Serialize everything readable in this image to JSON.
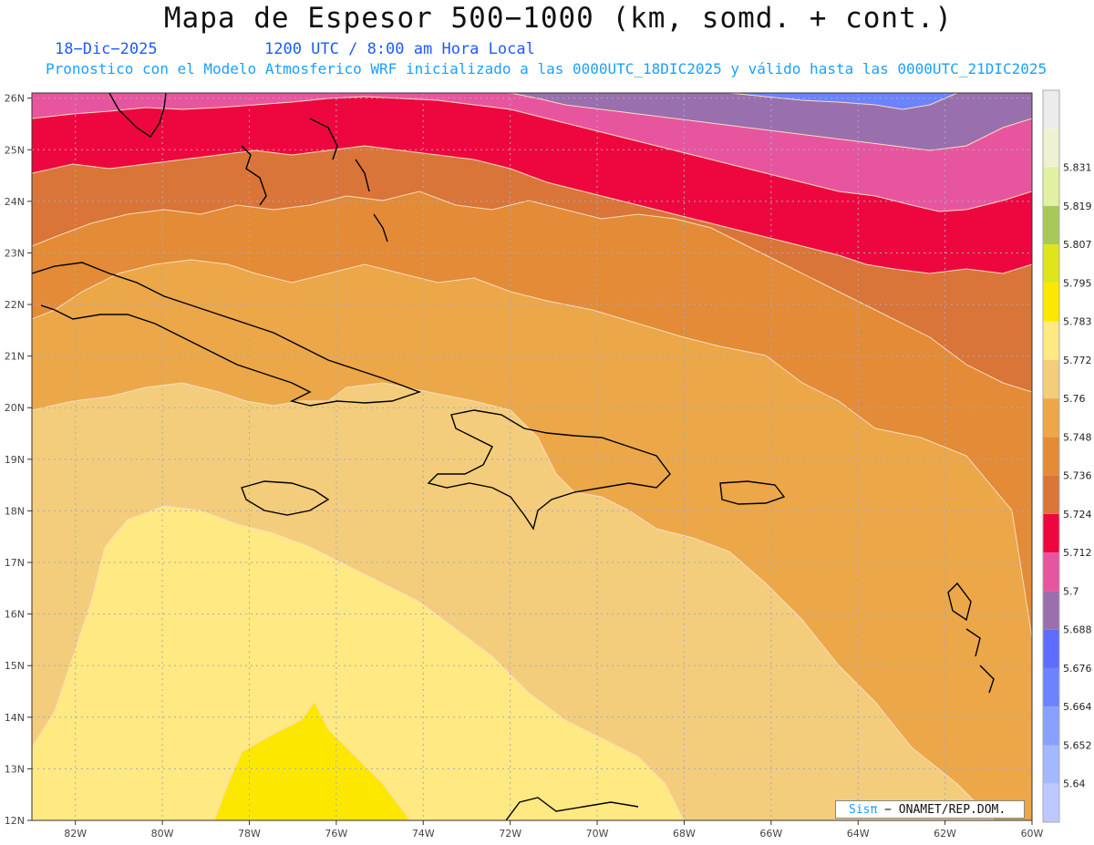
{
  "title": "Mapa de Espesor 500−1000 (km, somd. + cont.)",
  "date_label": "18−Dic−2025",
  "time_label": "1200 UTC / 8:00 am Hora Local",
  "subtitle": "Pronostico con el Modelo Atmosferico WRF inicializado a las 0000UTC_18DIC2025 y válido hasta las  0000UTC_21DIC2025",
  "credit": {
    "brand": "Sisπ",
    "text": "− ONAMET/REP.DOM."
  },
  "lat_labels": [
    "26N",
    "25N",
    "24N",
    "23N",
    "22N",
    "21N",
    "20N",
    "19N",
    "18N",
    "17N",
    "16N",
    "15N",
    "14N",
    "13N",
    "12N"
  ],
  "lon_labels": [
    "82W",
    "80W",
    "78W",
    "76W",
    "74W",
    "72W",
    "70W",
    "68W",
    "66W",
    "64W",
    "62W",
    "60W"
  ],
  "colorbar": [
    {
      "label": "",
      "color": "#bcc8ff"
    },
    {
      "label": "5.64",
      "color": "#a3b9ff"
    },
    {
      "label": "5.652",
      "color": "#88a0ff"
    },
    {
      "label": "5.664",
      "color": "#6c83ff"
    },
    {
      "label": "5.676",
      "color": "#5e6cff"
    },
    {
      "label": "5.688",
      "color": "#9a6fad"
    },
    {
      "label": "5.7",
      "color": "#e8559f"
    },
    {
      "label": "5.712",
      "color": "#ee073e"
    },
    {
      "label": "5.724",
      "color": "#d97538"
    },
    {
      "label": "5.736",
      "color": "#e38b36"
    },
    {
      "label": "5.748",
      "color": "#eca748"
    },
    {
      "label": "5.76",
      "color": "#f3cd7b"
    },
    {
      "label": "5.772",
      "color": "#fee982"
    },
    {
      "label": "5.783",
      "color": "#fce700"
    },
    {
      "label": "5.795",
      "color": "#dfe51c"
    },
    {
      "label": "5.807",
      "color": "#a8c95a"
    },
    {
      "label": "5.819",
      "color": "#e2f0a2"
    },
    {
      "label": "5.831",
      "color": "#eef2d3"
    },
    {
      "label": "",
      "color": "#ececec"
    }
  ],
  "map": {
    "lon_range": [
      -83,
      -60
    ],
    "lat_range": [
      12,
      26.1
    ]
  }
}
